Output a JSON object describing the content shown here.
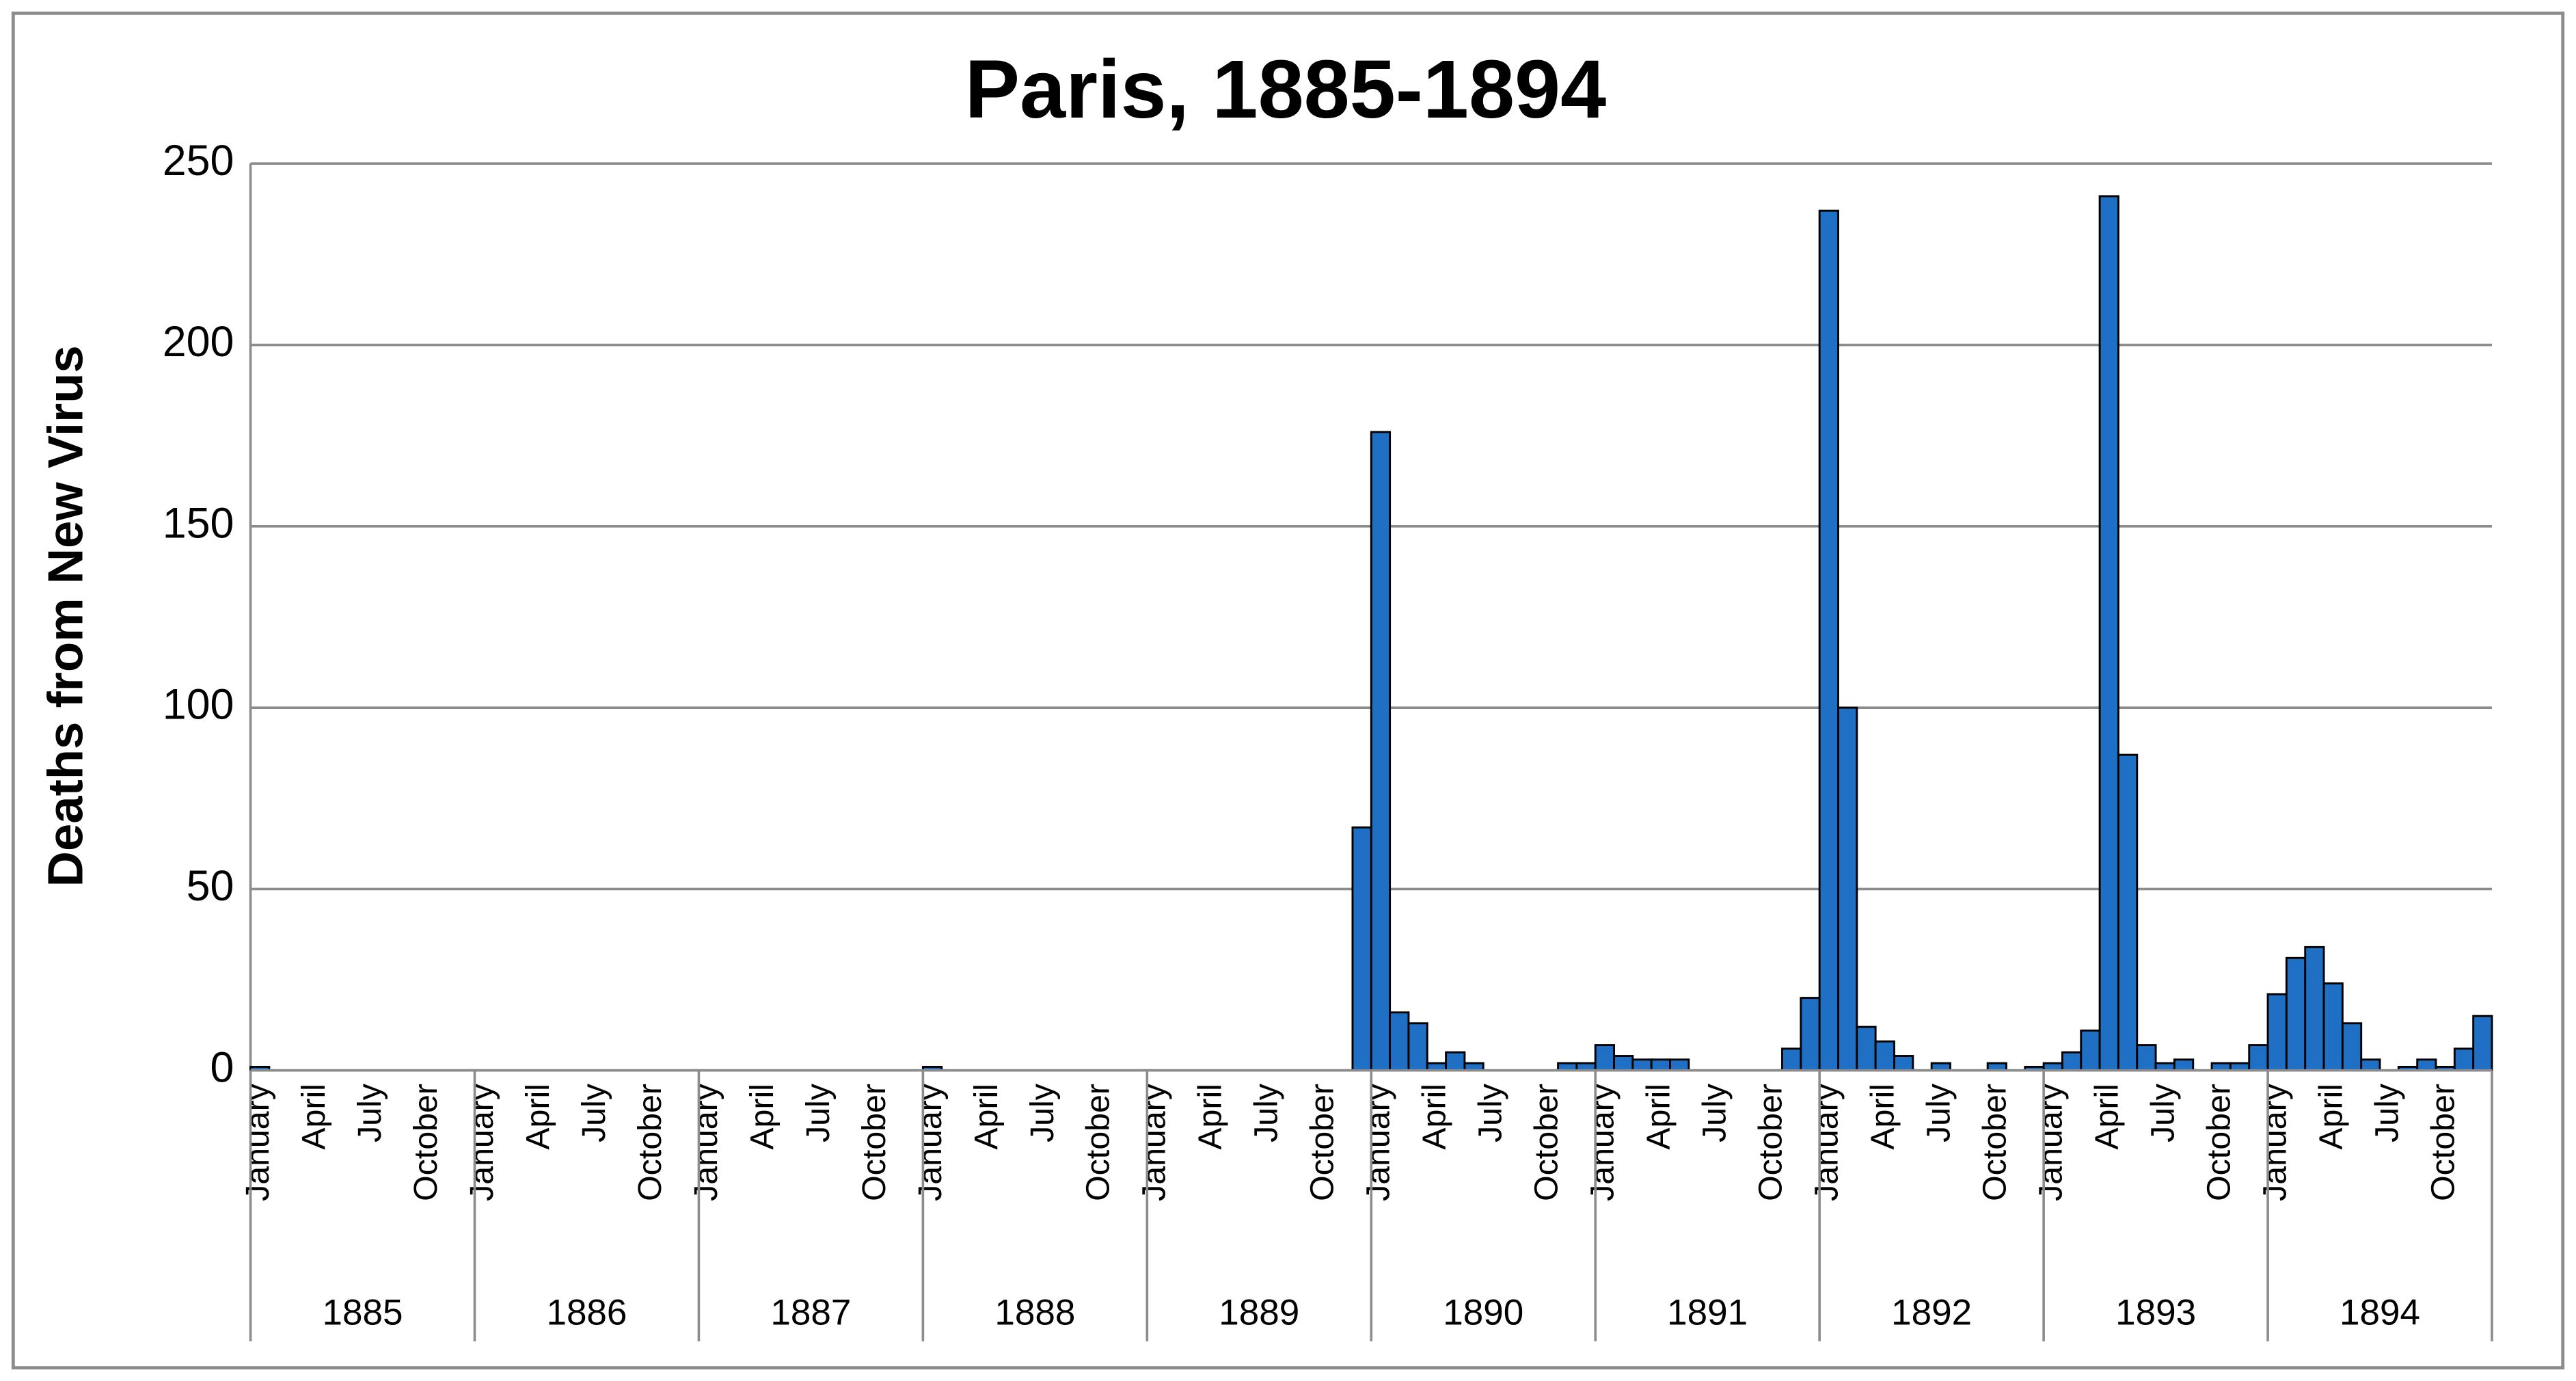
{
  "chart_data": {
    "type": "bar",
    "title": "Paris, 1885-1894",
    "y_label": "Deaths from New Virus",
    "categories": [
      "January",
      null,
      null,
      "April",
      null,
      null,
      "July",
      null,
      null,
      "October",
      null,
      null,
      "January",
      null,
      null,
      "April",
      null,
      null,
      "July",
      null,
      null,
      "October",
      null,
      null,
      "January",
      null,
      null,
      "April",
      null,
      null,
      "July",
      null,
      null,
      "October",
      null,
      null,
      "January",
      null,
      null,
      "April",
      null,
      null,
      "July",
      null,
      null,
      "October",
      null,
      null,
      "January",
      null,
      null,
      "April",
      null,
      null,
      "July",
      null,
      null,
      "October",
      null,
      null,
      "January",
      null,
      null,
      "April",
      null,
      null,
      "July",
      null,
      null,
      "October",
      null,
      null,
      "January",
      null,
      null,
      "April",
      null,
      null,
      "July",
      null,
      null,
      "October",
      null,
      null,
      "January",
      null,
      null,
      "April",
      null,
      null,
      "July",
      null,
      null,
      "October",
      null,
      null,
      "January",
      null,
      null,
      "April",
      null,
      null,
      "July",
      null,
      null,
      "October",
      null,
      null,
      "January",
      null,
      null,
      "April",
      null,
      null,
      "July",
      null,
      null,
      "October",
      null,
      null
    ],
    "groups": [
      "1885",
      "1886",
      "1887",
      "1888",
      "1889",
      "1890",
      "1891",
      "1892",
      "1893",
      "1894"
    ],
    "values": [
      1,
      0,
      0,
      0,
      0,
      0,
      0,
      0,
      0,
      0,
      0,
      0,
      0,
      0,
      0,
      0,
      0,
      0,
      0,
      0,
      0,
      0,
      0,
      0,
      0,
      0,
      0,
      0,
      0,
      0,
      0,
      0,
      0,
      0,
      0,
      0,
      1,
      0,
      0,
      0,
      0,
      0,
      0,
      0,
      0,
      0,
      0,
      0,
      0,
      0,
      0,
      0,
      0,
      0,
      0,
      0,
      0,
      0,
      0,
      67,
      176,
      16,
      13,
      2,
      5,
      2,
      0,
      0,
      0,
      0,
      2,
      2,
      7,
      4,
      3,
      3,
      3,
      0,
      0,
      0,
      0,
      0,
      6,
      20,
      237,
      100,
      12,
      8,
      4,
      0,
      2,
      0,
      0,
      2,
      0,
      1,
      2,
      5,
      11,
      241,
      87,
      7,
      2,
      3,
      0,
      2,
      2,
      7,
      21,
      31,
      34,
      24,
      13,
      3,
      0,
      1,
      3,
      1,
      6,
      15
    ],
    "color": "#1f6fc5",
    "ylim": [
      0,
      250
    ],
    "yticks": [
      0,
      50,
      100,
      150,
      200,
      250
    ],
    "grid": true
  }
}
